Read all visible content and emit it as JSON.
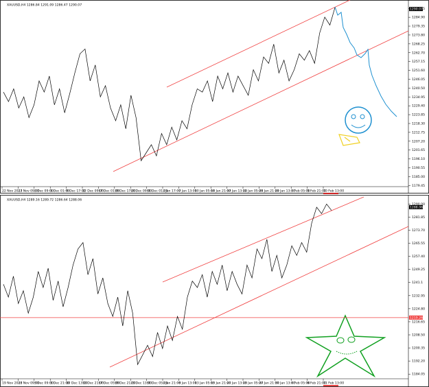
{
  "chart_data": [
    {
      "type": "line",
      "title": "XAUUSD,H4 1286.84 1291.09 1286.47 1290.07",
      "color": "#000000",
      "current_price": 1290.07,
      "ylim": [
        1177,
        1294
      ],
      "yticks": [
        1179.45,
        {
          "value": 1185,
          "label": "1185.00"
        },
        1190.55,
        {
          "value": 1196.1,
          "label": "1196.10"
        },
        1201.65,
        {
          "value": 1207.2,
          "label": "1207.20"
        },
        1212.75,
        {
          "value": 1218.3,
          "label": "1218.30"
        },
        1223.85,
        {
          "value": 1229.4,
          "label": "1229.40"
        },
        1234.95,
        {
          "value": 1240.5,
          "label": "1240.50"
        },
        1246.05,
        {
          "value": 1251.6,
          "label": "1251.60"
        },
        1257.15,
        {
          "value": 1262.7,
          "label": "1262.70"
        },
        1268.25,
        {
          "value": 1273.8,
          "label": "1273.80"
        },
        1279.35,
        {
          "value": 1284.9,
          "label": "1284.90"
        },
        1290.45
      ],
      "xticks": [
        "22 Nov 2013",
        "27 Nov 09:00",
        "2 Dec 09:00",
        "5 Dec 01:00",
        "9 Dec 17:00",
        "12 Dec 09:00",
        "17 Dec 01:00",
        "19 Dec 17:00",
        "24 Dec 09:00",
        "30 Dec 01:00",
        "2 Jan 17:00",
        "7 Jan 13:00",
        "10 Jan 05:00",
        "14 Jan 21:00",
        "17 Jan 13:00",
        "22 Jan 05:00",
        "24 Jan 21:00",
        "29 Jan 13:00",
        "3 Feb 05:00",
        "5 Feb 21:00",
        "10 Feb 13:00"
      ],
      "values": [
        1238,
        1232,
        1240,
        1228,
        1235,
        1222,
        1230,
        1245,
        1238,
        1248,
        1230,
        1240,
        1225,
        1237,
        1250,
        1262,
        1265,
        1245,
        1255,
        1235,
        1242,
        1228,
        1220,
        1230,
        1215,
        1236,
        1222,
        1195,
        1200,
        1205,
        1198,
        1212,
        1205,
        1216,
        1208,
        1220,
        1215,
        1230,
        1240,
        1238,
        1245,
        1232,
        1248,
        1240,
        1250,
        1238,
        1248,
        1242,
        1236,
        1252,
        1245,
        1260,
        1256,
        1268,
        1250,
        1258,
        1245,
        1252,
        1262,
        1258,
        1264,
        1256,
        1275,
        1285,
        1280,
        1291
      ]
    },
    {
      "type": "line",
      "title": "XAUUSD,H4 1289.16 1289.72 1286.64 1288.06",
      "color": "#000000",
      "current_price": 1288.06,
      "hline": 1219.26,
      "ylim": [
        1182,
        1294
      ],
      "yticks": [
        {
          "value": 1184.05,
          "label": "1184.05"
        },
        {
          "value": 1192.2,
          "label": "1192.20"
        },
        1200.35,
        {
          "value": 1208.5,
          "label": "1208.50"
        },
        1216.65,
        {
          "value": 1224.8,
          "label": "1224.80"
        },
        1232.95,
        1241.1,
        1249.25,
        {
          "value": 1257.4,
          "label": "1257.40"
        },
        1265.55,
        {
          "value": 1273.7,
          "label": "1273.70"
        },
        1281.85,
        {
          "value": 1290,
          "label": "1290.00"
        }
      ],
      "xticks": [
        "19 Nov 2013",
        "20 Nov 09:00",
        "3 Dec 09:00",
        "5 Dec 21:00",
        "10 Dec 13:00",
        "12 Dec 21:00",
        "17 Dec 05:00",
        "19 Dec 21:00",
        "23 Dec 13:00",
        "30 Dec 05:00",
        "2 Jan 21:00",
        "8 Jan 13:00",
        "13 Jan 05:00",
        "15 Jan 21:00",
        "20 Jan 13:00",
        "23 Jan 05:00",
        "27 Jan 21:00",
        "30 Jan 13:00",
        "4 Feb 05:00",
        "6 Feb 21:00",
        "11 Feb 13:00"
      ],
      "values": [
        1240,
        1232,
        1245,
        1228,
        1236,
        1222,
        1232,
        1248,
        1238,
        1250,
        1230,
        1242,
        1226,
        1238,
        1252,
        1262,
        1266,
        1246,
        1256,
        1234,
        1244,
        1228,
        1220,
        1232,
        1214,
        1236,
        1222,
        1190,
        1196,
        1202,
        1195,
        1210,
        1200,
        1214,
        1205,
        1220,
        1212,
        1232,
        1242,
        1238,
        1246,
        1232,
        1248,
        1240,
        1252,
        1236,
        1248,
        1240,
        1234,
        1252,
        1244,
        1262,
        1256,
        1268,
        1248,
        1258,
        1244,
        1252,
        1264,
        1258,
        1266,
        1260,
        1278,
        1288,
        1284,
        1290,
        1286
      ]
    }
  ]
}
